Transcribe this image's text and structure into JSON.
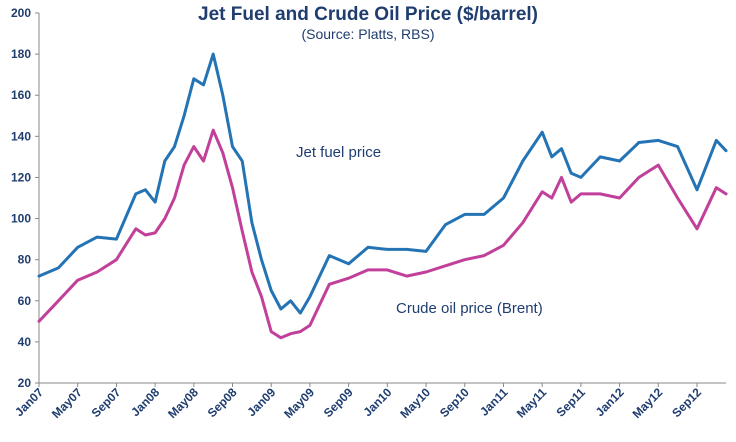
{
  "chart_data": {
    "type": "line",
    "title": "Jet Fuel and Crude Oil Price ($/barrel)",
    "subtitle": "(Source: Platts, RBS)",
    "xlabel": "",
    "ylabel": "",
    "ylim": [
      20,
      200
    ],
    "y_ticks": [
      "20",
      "40",
      "60",
      "80",
      "100",
      "120",
      "140",
      "160",
      "180",
      "200"
    ],
    "x_tick_labels": [
      "Jan07",
      "May07",
      "Sep07",
      "Jan08",
      "May08",
      "Sep08",
      "Jan09",
      "May09",
      "Sep09",
      "Jan10",
      "May10",
      "Sep10",
      "Jan11",
      "May11",
      "Sep11",
      "Jan12",
      "May12",
      "Sep12"
    ],
    "x_index_range": [
      0,
      71
    ],
    "grid": false,
    "annotations": [
      "Jet fuel price",
      "Crude oil price (Brent)"
    ],
    "series": [
      {
        "name": "Jet fuel price",
        "color": "#2474b5",
        "x": [
          0,
          2,
          4,
          6,
          8,
          10,
          11,
          12,
          13,
          14,
          15,
          16,
          17,
          18,
          19,
          20,
          21,
          22,
          23,
          24,
          25,
          26,
          27,
          28,
          30,
          32,
          34,
          36,
          38,
          40,
          42,
          44,
          46,
          48,
          50,
          52,
          53,
          54,
          55,
          56,
          58,
          60,
          62,
          64,
          66,
          68,
          70,
          71
        ],
        "values": [
          72,
          76,
          86,
          91,
          90,
          112,
          114,
          108,
          128,
          135,
          150,
          168,
          165,
          180,
          160,
          135,
          128,
          98,
          80,
          65,
          56,
          60,
          54,
          62,
          82,
          78,
          86,
          85,
          85,
          84,
          97,
          102,
          102,
          110,
          128,
          142,
          130,
          134,
          122,
          120,
          130,
          128,
          137,
          138,
          135,
          114,
          138,
          133
        ]
      },
      {
        "name": "Crude oil price (Brent)",
        "color": "#c0409a",
        "x": [
          0,
          2,
          4,
          6,
          8,
          10,
          11,
          12,
          13,
          14,
          15,
          16,
          17,
          18,
          19,
          20,
          21,
          22,
          23,
          24,
          25,
          26,
          27,
          28,
          30,
          32,
          34,
          36,
          38,
          40,
          42,
          44,
          46,
          48,
          50,
          52,
          53,
          54,
          55,
          56,
          58,
          60,
          62,
          64,
          66,
          68,
          70,
          71
        ],
        "values": [
          50,
          60,
          70,
          74,
          80,
          95,
          92,
          93,
          100,
          110,
          126,
          135,
          128,
          143,
          132,
          115,
          94,
          74,
          62,
          45,
          42,
          44,
          45,
          48,
          68,
          71,
          75,
          75,
          72,
          74,
          77,
          80,
          82,
          87,
          98,
          113,
          110,
          120,
          108,
          112,
          112,
          110,
          120,
          126,
          110,
          95,
          115,
          112
        ]
      }
    ]
  }
}
